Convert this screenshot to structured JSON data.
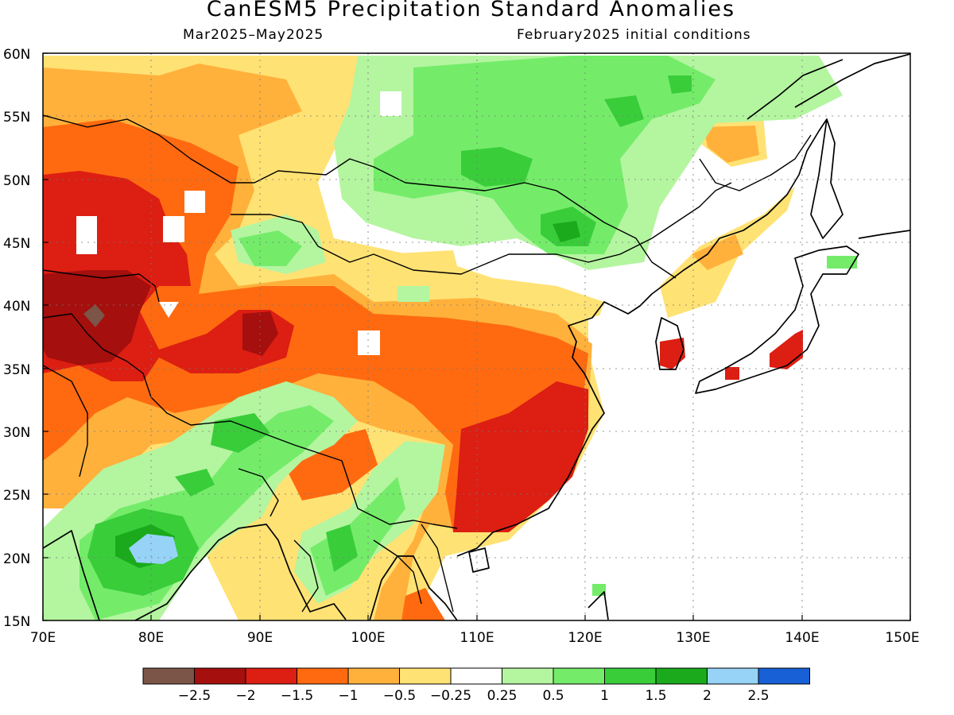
{
  "title": "CanESM5 Precipitation Standard Anomalies",
  "period": "Mar2025–May2025",
  "init": "February2025 initial conditions",
  "map": {
    "lon_range": [
      70,
      150
    ],
    "lat_range": [
      15,
      60
    ],
    "lat_labels": [
      "60N",
      "55N",
      "50N",
      "45N",
      "40N",
      "35N",
      "30N",
      "25N",
      "20N",
      "15N"
    ],
    "lon_labels": [
      "70E",
      "80E",
      "90E",
      "100E",
      "110E",
      "120E",
      "130E",
      "140E",
      "150E"
    ],
    "grid": true
  },
  "colorbar": {
    "labels": [
      "−2.5",
      "−2",
      "−1.5",
      "−1",
      "−0.5",
      "−0.25",
      "0.25",
      "0.5",
      "1",
      "1.5",
      "2",
      "2.5"
    ],
    "colors": [
      "#7a5548",
      "#a50f0d",
      "#dc1e13",
      "#ff6a10",
      "#ffb13c",
      "#ffe274",
      "#ffffff",
      "#b4f5a0",
      "#74ec6a",
      "#39cd3a",
      "#1aaa1c",
      "#97d3f7",
      "#1760d6"
    ]
  },
  "legend_colors": {
    "c_m3": "#7a5548",
    "c_m25": "#a50f0d",
    "c_m2": "#dc1e13",
    "c_m15": "#ff6a10",
    "c_m1": "#ffb13c",
    "c_m05": "#ffe274",
    "c_0": "#ffffff",
    "c_p05": "#b4f5a0",
    "c_p1": "#74ec6a",
    "c_p15": "#39cd3a",
    "c_p2": "#1aaa1c",
    "c_p25": "#97d3f7"
  }
}
